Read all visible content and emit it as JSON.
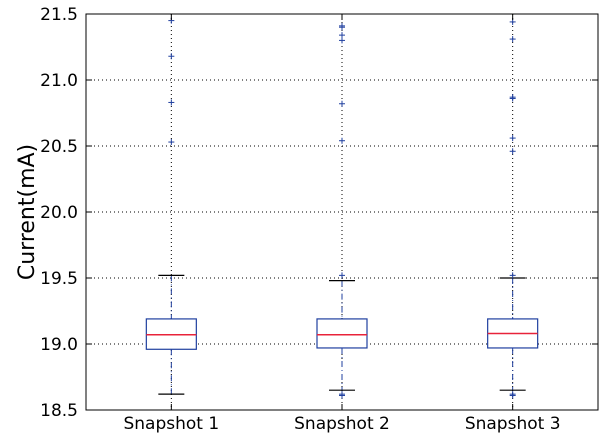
{
  "chart_data": {
    "type": "box",
    "title": "",
    "xlabel": "",
    "ylabel": "Current(mA)",
    "ylim": [
      18.5,
      21.5
    ],
    "yticks": [
      "18.5",
      "19.0",
      "19.5",
      "20.0",
      "20.5",
      "21.0",
      "21.5"
    ],
    "grid": true,
    "colors": {
      "box": "#1f3f9f",
      "median": "#e8233a",
      "whisker": "#1f3f9f",
      "cap": "#000000",
      "flier": "#1f3f9f",
      "grid": "#000000"
    },
    "categories": [
      "Snapshot 1",
      "Snapshot 2",
      "Snapshot 3"
    ],
    "boxes": [
      {
        "label": "Snapshot 1",
        "whisker_low": 18.62,
        "q1": 18.96,
        "median": 19.07,
        "q3": 19.19,
        "whisker_high": 19.52,
        "fliers": [
          21.45,
          21.18,
          20.83,
          20.53
        ]
      },
      {
        "label": "Snapshot 2",
        "whisker_low": 18.65,
        "q1": 18.97,
        "median": 19.07,
        "q3": 19.19,
        "whisker_high": 19.48,
        "fliers": [
          21.41,
          21.4,
          21.34,
          21.3,
          20.82,
          20.54,
          19.52,
          18.62,
          18.61
        ]
      },
      {
        "label": "Snapshot 3",
        "whisker_low": 18.65,
        "q1": 18.97,
        "median": 19.08,
        "q3": 19.19,
        "whisker_high": 19.5,
        "fliers": [
          21.44,
          21.31,
          20.87,
          20.86,
          20.56,
          20.46,
          19.52,
          18.62,
          18.61
        ]
      }
    ]
  }
}
